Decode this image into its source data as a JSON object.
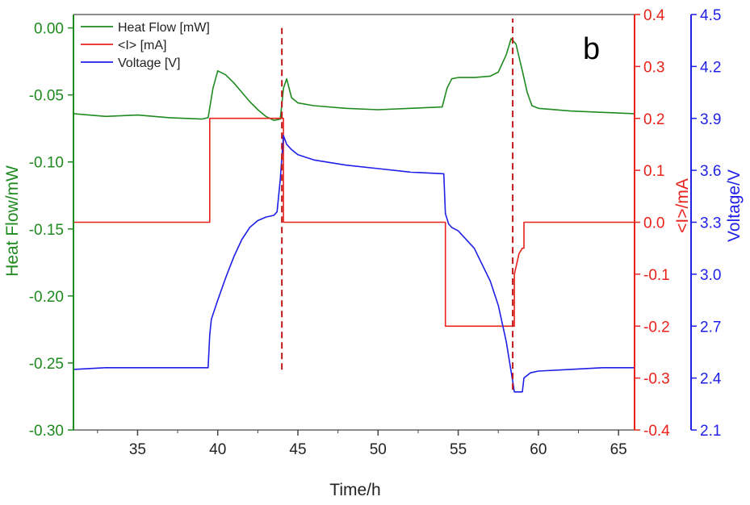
{
  "chart_data": {
    "type": "line",
    "panel_label": "b",
    "xlabel": "Time/h",
    "xlim": [
      31,
      66
    ],
    "x_ticks": [
      35,
      40,
      45,
      50,
      55,
      60,
      65
    ],
    "axes": {
      "heat": {
        "label": "Heat Flow/mW",
        "color": "#1f8a1f",
        "ylim": [
          -0.3,
          0.01
        ],
        "ticks": [
          0.0,
          -0.05,
          -0.1,
          -0.15,
          -0.2,
          -0.25,
          -0.3
        ],
        "tick_labels": [
          "0.00",
          "-0.05",
          "-0.10",
          "-0.15",
          "-0.20",
          "-0.25",
          "-0.30"
        ]
      },
      "current": {
        "label": "<I>/mA",
        "color": "#e8221b",
        "ylim": [
          -0.4,
          0.4
        ],
        "ticks": [
          0.4,
          0.3,
          0.2,
          0.1,
          0.0,
          -0.1,
          -0.2,
          -0.3,
          -0.4
        ],
        "tick_labels": [
          "0.4",
          "0.3",
          "0.2",
          "0.1",
          "0.0",
          "-0.1",
          "-0.2",
          "-0.3",
          "-0.4"
        ]
      },
      "voltage": {
        "label": "Voltage/V",
        "color": "#1f1fe8",
        "ylim": [
          2.1,
          4.5
        ],
        "ticks": [
          4.5,
          4.2,
          3.9,
          3.6,
          3.3,
          3.0,
          2.7,
          2.4,
          2.1
        ],
        "tick_labels": [
          "4.5",
          "4.2",
          "3.9",
          "3.6",
          "3.3",
          "3.0",
          "2.7",
          "2.4",
          "2.1"
        ]
      }
    },
    "legend": {
      "placement": "top-left"
    },
    "series": [
      {
        "name": "Heat Flow [mW]",
        "axis": "heat",
        "color": "#1f8a1f",
        "x": [
          31,
          33,
          35,
          37,
          39,
          39.4,
          39.7,
          40.0,
          40.5,
          41.0,
          41.5,
          42.0,
          42.5,
          43.0,
          43.5,
          43.9,
          44.1,
          44.3,
          44.6,
          45.0,
          46,
          48,
          50,
          52,
          54,
          54.3,
          54.6,
          55,
          56,
          57,
          57.5,
          58,
          58.3,
          58.6,
          59.0,
          59.3,
          59.6,
          60,
          62,
          64,
          66
        ],
        "y": [
          -0.064,
          -0.066,
          -0.065,
          -0.067,
          -0.068,
          -0.067,
          -0.045,
          -0.032,
          -0.035,
          -0.041,
          -0.048,
          -0.055,
          -0.061,
          -0.066,
          -0.069,
          -0.068,
          -0.045,
          -0.038,
          -0.052,
          -0.056,
          -0.058,
          -0.06,
          -0.061,
          -0.06,
          -0.059,
          -0.045,
          -0.038,
          -0.037,
          -0.037,
          -0.036,
          -0.033,
          -0.02,
          -0.008,
          -0.012,
          -0.032,
          -0.048,
          -0.058,
          -0.06,
          -0.062,
          -0.063,
          -0.064
        ]
      },
      {
        "name": "<I> [mA]",
        "axis": "current",
        "color": "#e8221b",
        "x": [
          31,
          39.5,
          39.5,
          44.1,
          44.1,
          54.2,
          54.2,
          58.5,
          58.5,
          58.8,
          59.0,
          59.1,
          59.1,
          66
        ],
        "y": [
          0.0,
          0.0,
          0.2,
          0.2,
          0.0,
          0.0,
          -0.2,
          -0.2,
          -0.1,
          -0.06,
          -0.05,
          -0.05,
          0.0,
          0.0
        ]
      },
      {
        "name": "Voltage [V]",
        "axis": "voltage",
        "color": "#1f1fe8",
        "x": [
          31,
          33,
          35,
          37,
          39.4,
          39.5,
          39.6,
          40.0,
          40.5,
          41.0,
          41.5,
          42.0,
          42.5,
          43.0,
          43.5,
          43.7,
          43.9,
          44.1,
          44.3,
          44.6,
          45.0,
          46,
          48,
          50,
          52,
          54.1,
          54.2,
          54.4,
          54.6,
          55.0,
          56.0,
          57.0,
          57.5,
          58.0,
          58.4,
          58.5,
          58.8,
          59.0,
          59.1,
          59.5,
          60,
          62,
          64,
          66
        ],
        "y": [
          2.45,
          2.46,
          2.46,
          2.46,
          2.46,
          2.65,
          2.74,
          2.85,
          2.98,
          3.1,
          3.2,
          3.27,
          3.31,
          3.33,
          3.34,
          3.36,
          3.55,
          3.8,
          3.75,
          3.72,
          3.69,
          3.66,
          3.63,
          3.61,
          3.59,
          3.58,
          3.35,
          3.29,
          3.27,
          3.25,
          3.15,
          2.96,
          2.82,
          2.61,
          2.38,
          2.32,
          2.32,
          2.32,
          2.4,
          2.43,
          2.44,
          2.45,
          2.46,
          2.46
        ]
      },
      {
        "name": "",
        "type": "vline",
        "dashed": true,
        "color": "#c0181a",
        "x": 44.0,
        "heat_range": [
          -0.255,
          0.0
        ]
      },
      {
        "name": "",
        "type": "vline",
        "dashed": true,
        "color": "#c0181a",
        "x": 58.4,
        "heat_range": [
          -0.27,
          0.007
        ]
      }
    ]
  }
}
